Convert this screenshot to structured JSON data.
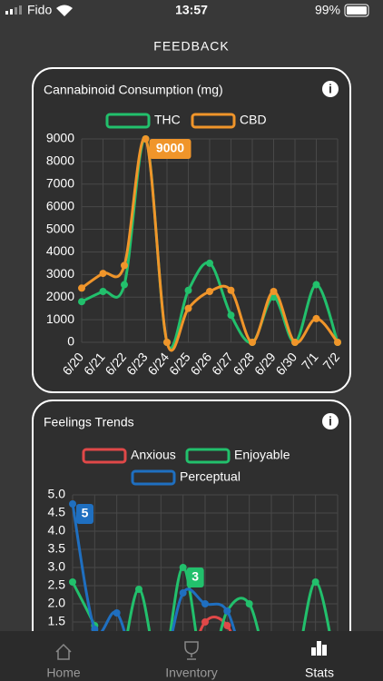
{
  "status_bar": {
    "carrier": "Fido",
    "time": "13:57",
    "battery": "99%"
  },
  "header": {
    "title": "FEEDBACK"
  },
  "chart_data": [
    {
      "type": "line",
      "title": "Cannabinoid Consumption (mg)",
      "categories": [
        "6/20",
        "6/21",
        "6/22",
        "6/23",
        "6/24",
        "6/25",
        "6/26",
        "6/27",
        "6/28",
        "6/29",
        "6/30",
        "7/1",
        "7/2"
      ],
      "series": [
        {
          "name": "THC",
          "color": "#22c06c",
          "values": [
            1800,
            2250,
            2550,
            9000,
            0,
            2300,
            3500,
            1200,
            0,
            2000,
            0,
            2550,
            0
          ]
        },
        {
          "name": "CBD",
          "color": "#f0952a",
          "values": [
            2400,
            3050,
            3400,
            9000,
            0,
            1500,
            2250,
            2300,
            0,
            2250,
            0,
            1050,
            0
          ],
          "value_labels": [
            null,
            null,
            null,
            "9000",
            null,
            null,
            null,
            null,
            null,
            null,
            null,
            null,
            null
          ]
        }
      ],
      "ylim": [
        0,
        9000
      ],
      "yticks": [
        0,
        1000,
        2000,
        3000,
        4000,
        5000,
        6000,
        7000,
        8000,
        9000
      ],
      "grid": true
    },
    {
      "type": "line",
      "title": "Feelings Trends",
      "categories": [
        null,
        null,
        null,
        null,
        null,
        null,
        null,
        null,
        null,
        null,
        null,
        null,
        null
      ],
      "series": [
        {
          "name": "Anxious",
          "color": "#e04848",
          "values": [
            0,
            0,
            0,
            0,
            0,
            0,
            1.5,
            1.4,
            0,
            0,
            0,
            0,
            0
          ]
        },
        {
          "name": "Enjoyable",
          "color": "#22c06c",
          "values": [
            2.6,
            1.4,
            0,
            2.4,
            0,
            3.0,
            0,
            1.8,
            2.0,
            0,
            0,
            2.6,
            0
          ],
          "value_labels": [
            null,
            null,
            null,
            null,
            null,
            "3",
            null,
            null,
            null,
            null,
            null,
            null,
            null
          ]
        },
        {
          "name": "Perceptual",
          "color": "#1f6fc0",
          "values": [
            4.75,
            1.3,
            1.75,
            0,
            0,
            2.3,
            2.0,
            1.8,
            0,
            0,
            0,
            0,
            0
          ],
          "value_labels": [
            "5",
            null,
            null,
            null,
            null,
            null,
            null,
            null,
            null,
            null,
            null,
            null,
            null
          ]
        }
      ],
      "ylim": [
        0,
        5
      ],
      "yticks": [
        {
          "value": 1.5,
          "label": "1.5"
        },
        {
          "value": 2,
          "label": "2.0"
        },
        {
          "value": 2.5,
          "label": "2.5"
        },
        {
          "value": 3,
          "label": "3.0"
        },
        {
          "value": 3.5,
          "label": "3.5"
        },
        {
          "value": 4,
          "label": "4.0"
        },
        {
          "value": 4.5,
          "label": "4.5"
        },
        {
          "value": 5,
          "label": "5.0"
        }
      ],
      "grid": true
    }
  ],
  "tabs": [
    "Home",
    "Inventory",
    "Stats"
  ]
}
